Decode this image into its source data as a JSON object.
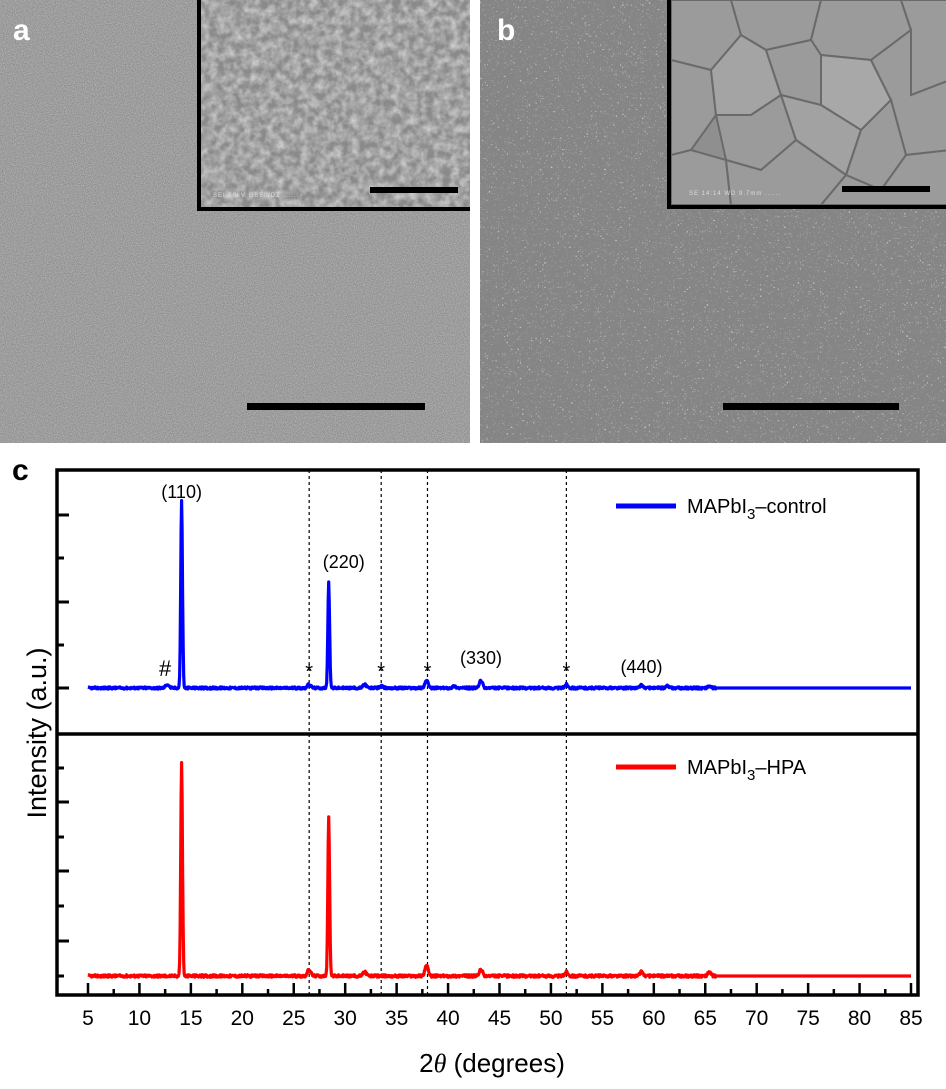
{
  "figure": {
    "panels": [
      {
        "label": "a",
        "type": "SEM micrograph",
        "description": "Top-view SEM image of MAPbI3-control film, fine-grained surface",
        "inset": "Higher-magnification SEM inset showing small grains",
        "inset_meta_text": "SEI   50kV   GB50/DZ   ......"
      },
      {
        "label": "b",
        "type": "SEM micrograph",
        "description": "Top-view SEM image of MAPbI3-HPA film, textured surface",
        "inset": "Higher-magnification SEM inset showing large compact grains",
        "inset_meta_text": "SE   14:14   WD 9.7mm   ......"
      }
    ],
    "panel_c_label": "c"
  },
  "chart_data": {
    "type": "line",
    "title": "",
    "xlabel": "2θ (degrees)",
    "xlabel_parts": {
      "prefix": "2",
      "theta": "θ",
      "suffix": " (degrees)"
    },
    "ylabel": "Intensity (a.u.)",
    "xlim": [
      5,
      85
    ],
    "x_ticks": [
      5,
      10,
      15,
      20,
      25,
      30,
      35,
      40,
      45,
      50,
      55,
      60,
      65,
      70,
      75,
      80,
      85
    ],
    "x_tick_labels": [
      "5",
      "10",
      "15",
      "20",
      "25",
      "30",
      "35",
      "40",
      "45",
      "50",
      "55",
      "60",
      "65",
      "70",
      "75",
      "80",
      "85"
    ],
    "y_tick_labels": [],
    "grid": false,
    "stacked_panels": 2,
    "reference_lines_x": [
      26.5,
      33.5,
      38.0,
      51.5
    ],
    "series": [
      {
        "name": "MAPbI3–control",
        "legend_main": "MAPbI",
        "legend_sub": "3",
        "legend_suffix": "–control",
        "color": "#0000ff",
        "panel": "top",
        "peaks": [
          {
            "x": 12.7,
            "rel_intensity": 0.02
          },
          {
            "x": 14.1,
            "rel_intensity": 1.0
          },
          {
            "x": 26.5,
            "rel_intensity": 0.02
          },
          {
            "x": 28.4,
            "rel_intensity": 0.56
          },
          {
            "x": 31.9,
            "rel_intensity": 0.02
          },
          {
            "x": 33.5,
            "rel_intensity": 0.01
          },
          {
            "x": 37.9,
            "rel_intensity": 0.04
          },
          {
            "x": 40.6,
            "rel_intensity": 0.01
          },
          {
            "x": 43.2,
            "rel_intensity": 0.04
          },
          {
            "x": 51.5,
            "rel_intensity": 0.02
          },
          {
            "x": 58.8,
            "rel_intensity": 0.015
          },
          {
            "x": 61.3,
            "rel_intensity": 0.01
          },
          {
            "x": 65.4,
            "rel_intensity": 0.01
          }
        ]
      },
      {
        "name": "MAPbI3–HPA",
        "legend_main": "MAPbI",
        "legend_sub": "3",
        "legend_suffix": "–HPA",
        "color": "#ff0000",
        "panel": "bottom",
        "peaks": [
          {
            "x": 14.1,
            "rel_intensity": 1.0
          },
          {
            "x": 26.5,
            "rel_intensity": 0.03
          },
          {
            "x": 28.4,
            "rel_intensity": 0.74
          },
          {
            "x": 31.9,
            "rel_intensity": 0.02
          },
          {
            "x": 37.9,
            "rel_intensity": 0.05
          },
          {
            "x": 43.2,
            "rel_intensity": 0.03
          },
          {
            "x": 51.5,
            "rel_intensity": 0.02
          },
          {
            "x": 58.8,
            "rel_intensity": 0.02
          },
          {
            "x": 65.4,
            "rel_intensity": 0.02
          }
        ]
      }
    ],
    "annotations": [
      {
        "text": "(110)",
        "x": 14.1,
        "panel": "top"
      },
      {
        "text": "(220)",
        "x": 28.4,
        "panel": "top"
      },
      {
        "text": "(330)",
        "x": 43.2,
        "panel": "top"
      },
      {
        "text": "(440)",
        "x": 58.8,
        "panel": "top"
      },
      {
        "text": "#",
        "x": 12.5,
        "panel": "top"
      },
      {
        "text": "*",
        "x": 26.5,
        "panel": "top"
      },
      {
        "text": "*",
        "x": 33.5,
        "panel": "top"
      },
      {
        "text": "*",
        "x": 38.0,
        "panel": "top"
      },
      {
        "text": "*",
        "x": 51.5,
        "panel": "top"
      }
    ]
  }
}
